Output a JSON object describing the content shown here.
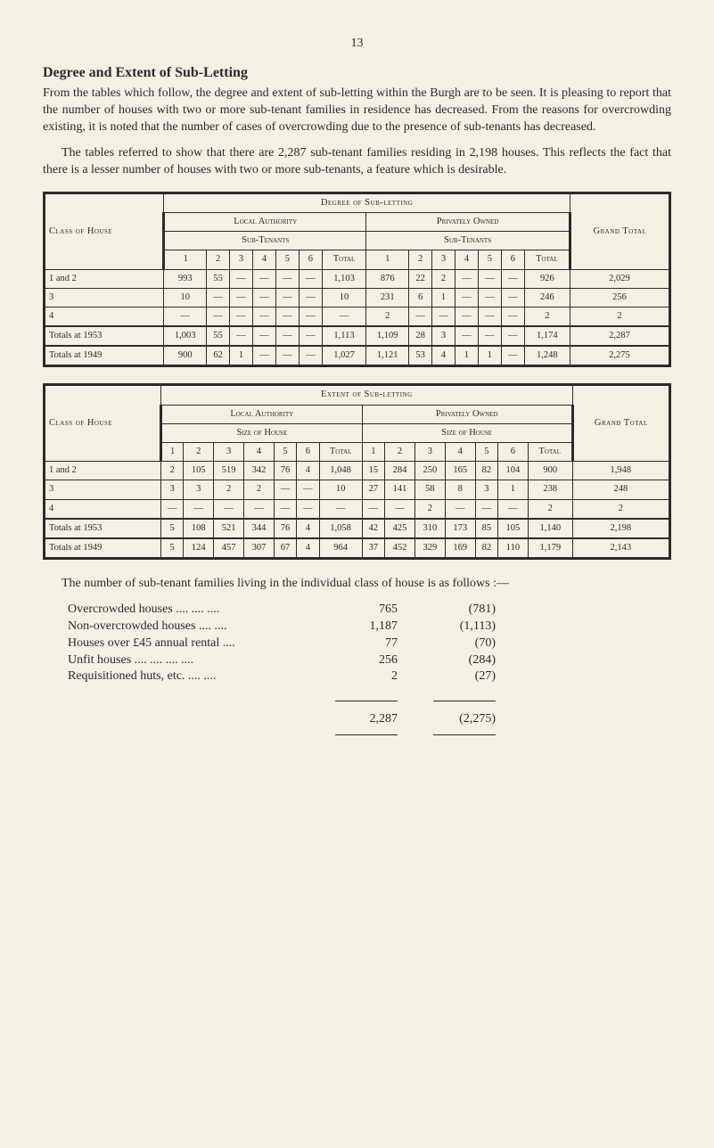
{
  "page_number": "13",
  "section_title": "Degree and Extent of Sub-Letting",
  "para1": "From the tables which follow, the degree and extent of sub-letting within the Burgh are to be seen. It is pleasing to report that the number of houses with two or more sub-tenant families in residence has decreased. From the reasons for overcrowding existing, it is noted that the number of cases of overcrowding due to the presence of sub-tenants has decreased.",
  "para2": "The tables referred to show that there are 2,287 sub-tenant families residing in 2,198 houses. This reflects the fact that there is a lesser number of houses with two or more sub-tenants, a feature which is desirable.",
  "table1": {
    "title": "Degree of Sub-letting",
    "rowhead": "Class of House",
    "la": "Local Authority",
    "po": "Privately Owned",
    "st": "Sub-Tenants",
    "gt": "Grand Total",
    "cols": [
      "1",
      "2",
      "3",
      "4",
      "5",
      "6",
      "Total"
    ],
    "rows": [
      {
        "label": "1 and 2",
        "cells": [
          "993",
          "55",
          "—",
          "—",
          "—",
          "—",
          "1,103",
          "876",
          "22",
          "2",
          "—",
          "—",
          "—",
          "926",
          "2,029"
        ]
      },
      {
        "label": "3",
        "cells": [
          "10",
          "—",
          "—",
          "—",
          "—",
          "—",
          "10",
          "231",
          "6",
          "1",
          "—",
          "—",
          "—",
          "246",
          "256"
        ]
      },
      {
        "label": "4",
        "cells": [
          "—",
          "—",
          "—",
          "—",
          "—",
          "—",
          "—",
          "2",
          "—",
          "—",
          "—",
          "—",
          "—",
          "2",
          "2"
        ]
      },
      {
        "label": "Totals at 1953",
        "cells": [
          "1,003",
          "55",
          "—",
          "—",
          "—",
          "—",
          "1,113",
          "1,109",
          "28",
          "3",
          "—",
          "—",
          "—",
          "1,174",
          "2,287"
        ]
      },
      {
        "label": "Totals at 1949",
        "cells": [
          "900",
          "62",
          "1",
          "—",
          "—",
          "—",
          "1,027",
          "1,121",
          "53",
          "4",
          "1",
          "1",
          "—",
          "1,248",
          "2,275"
        ]
      }
    ]
  },
  "table2": {
    "title": "Extent of Sub-letting",
    "rowhead": "Class of House",
    "la": "Local Authority",
    "po": "Privately Owned",
    "sh": "Size of House",
    "gt": "Grand Total",
    "cols": [
      "1",
      "2",
      "3",
      "4",
      "5",
      "6",
      "Total"
    ],
    "rows": [
      {
        "label": "1 and 2",
        "cells": [
          "2",
          "105",
          "519",
          "342",
          "76",
          "4",
          "1,048",
          "15",
          "284",
          "250",
          "165",
          "82",
          "104",
          "900",
          "1,948"
        ]
      },
      {
        "label": "3",
        "cells": [
          "3",
          "3",
          "2",
          "2",
          "—",
          "—",
          "10",
          "27",
          "141",
          "58",
          "8",
          "3",
          "1",
          "238",
          "248"
        ]
      },
      {
        "label": "4",
        "cells": [
          "—",
          "—",
          "—",
          "—",
          "—",
          "—",
          "—",
          "—",
          "—",
          "2",
          "—",
          "—",
          "—",
          "2",
          "2"
        ]
      },
      {
        "label": "Totals at 1953",
        "cells": [
          "5",
          "108",
          "521",
          "344",
          "76",
          "4",
          "1,058",
          "42",
          "425",
          "310",
          "173",
          "85",
          "105",
          "1,140",
          "2,198"
        ]
      },
      {
        "label": "Totals at 1949",
        "cells": [
          "5",
          "124",
          "457",
          "307",
          "67",
          "4",
          "964",
          "37",
          "452",
          "329",
          "169",
          "82",
          "110",
          "1,179",
          "2,143"
        ]
      }
    ]
  },
  "summary_intro": "The number of sub-tenant families living in the individual class of house is as follows :—",
  "summary_rows": [
    {
      "label": "Overcrowded houses",
      "dots": "....        ....        ....",
      "v1": "765",
      "v2": "(781)"
    },
    {
      "label": "Non-overcrowded houses",
      "dots": "        ....        ....",
      "v1": "1,187",
      "v2": "(1,113)"
    },
    {
      "label": "Houses over £45 annual rental",
      "dots": "        ....",
      "v1": "77",
      "v2": "(70)"
    },
    {
      "label": "Unfit houses",
      "dots": "        ....        ....        ....        ....",
      "v1": "256",
      "v2": "(284)"
    },
    {
      "label": "Requisitioned huts, etc.",
      "dots": "        ....        ....",
      "v1": "2",
      "v2": "(27)"
    }
  ],
  "summary_total": {
    "v1": "2,287",
    "v2": "(2,275)"
  },
  "style": {
    "background": "#f3f0e4",
    "text": "#2b2b2b",
    "font": "Times New Roman",
    "body_fontsize": 14,
    "table_fontsize": 10.5
  }
}
